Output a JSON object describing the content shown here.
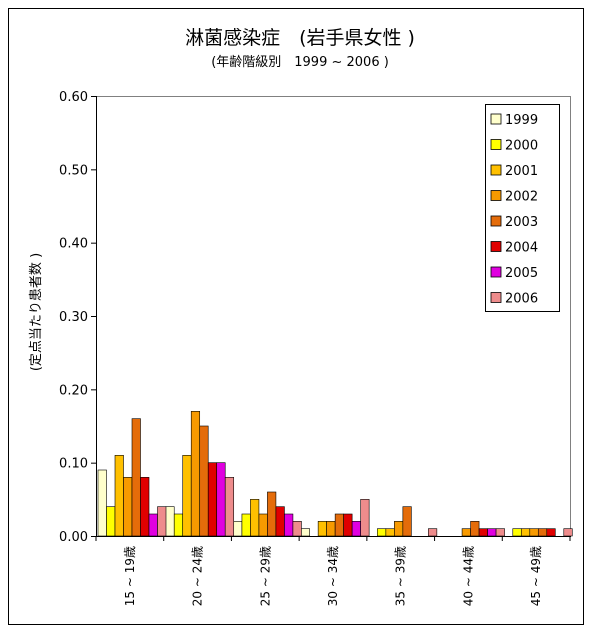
{
  "chart_data": {
    "type": "bar",
    "title": "淋菌感染症　(岩手県女性 )",
    "subtitle": "(年齢階級別　1999 ~ 2006 )",
    "xlabel": "",
    "ylabel": "(定点当たり患者数 )",
    "ylim": [
      0,
      0.6
    ],
    "yticks": [
      "0.00",
      "0.10",
      "0.20",
      "0.30",
      "0.40",
      "0.50",
      "0.60"
    ],
    "grid": false,
    "legend_position": "top-right",
    "categories": [
      "15 ~ 19歳",
      "20 ~ 24歳",
      "25 ~ 29歳",
      "30 ~ 34歳",
      "35 ~ 39歳",
      "40 ~ 44歳",
      "45 ~ 49歳"
    ],
    "series": [
      {
        "name": "1999",
        "color": "#FFFFCC",
        "values": [
          0.09,
          0.04,
          0.02,
          0.01,
          0.0,
          0.0,
          0.0
        ]
      },
      {
        "name": "2000",
        "color": "#FFFF00",
        "values": [
          0.04,
          0.03,
          0.03,
          0.0,
          0.01,
          0.0,
          0.01
        ]
      },
      {
        "name": "2001",
        "color": "#FFC000",
        "values": [
          0.11,
          0.11,
          0.05,
          0.02,
          0.01,
          0.0,
          0.01
        ]
      },
      {
        "name": "2002",
        "color": "#F79A00",
        "values": [
          0.08,
          0.17,
          0.03,
          0.02,
          0.02,
          0.01,
          0.01
        ]
      },
      {
        "name": "2003",
        "color": "#E46C0A",
        "values": [
          0.16,
          0.15,
          0.06,
          0.03,
          0.04,
          0.02,
          0.01
        ]
      },
      {
        "name": "2004",
        "color": "#E00000",
        "values": [
          0.08,
          0.1,
          0.04,
          0.03,
          0.0,
          0.01,
          0.01
        ]
      },
      {
        "name": "2005",
        "color": "#E000E0",
        "values": [
          0.03,
          0.1,
          0.03,
          0.02,
          0.0,
          0.01,
          0.0
        ]
      },
      {
        "name": "2006",
        "color": "#EE8C8C",
        "values": [
          0.04,
          0.08,
          0.02,
          0.05,
          0.01,
          0.01,
          0.01
        ]
      }
    ]
  }
}
